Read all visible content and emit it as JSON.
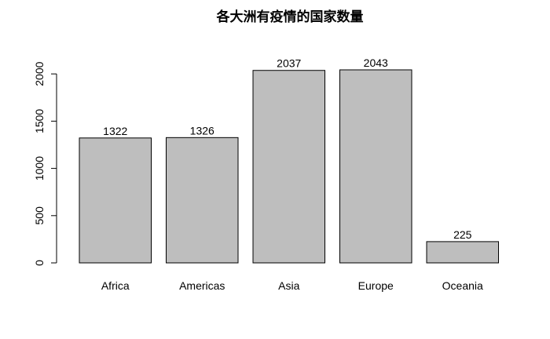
{
  "chart_data": {
    "type": "bar",
    "title": "各大洲有疫情的国家数量",
    "xlabel": "",
    "ylabel": "",
    "categories": [
      "Africa",
      "Americas",
      "Asia",
      "Europe",
      "Oceania"
    ],
    "values": [
      1322,
      1326,
      2037,
      2043,
      225
    ],
    "data_labels": [
      "1322",
      "1326",
      "2037",
      "2043",
      "225"
    ],
    "ylim": [
      0,
      2043
    ],
    "yticks": [
      0,
      500,
      1000,
      1500,
      2000
    ],
    "ytick_labels": [
      "0",
      "500",
      "1000",
      "1500",
      "2000"
    ],
    "grid": false,
    "bar_color": "#bebebe",
    "bar_border_color": "#000000"
  }
}
